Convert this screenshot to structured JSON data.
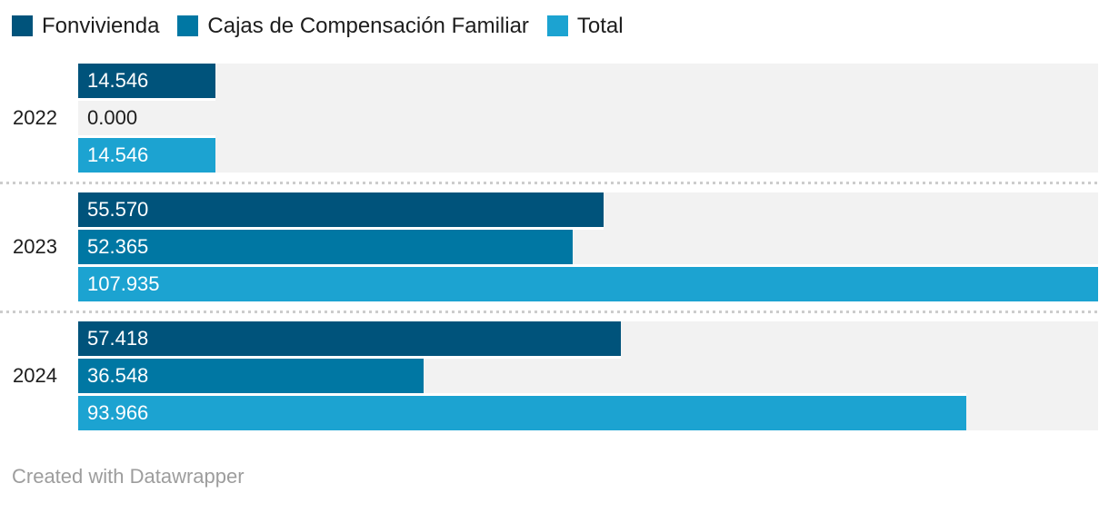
{
  "chart_data": {
    "type": "bar",
    "orientation": "horizontal",
    "title": "",
    "categories": [
      "2022",
      "2023",
      "2024"
    ],
    "series": [
      {
        "name": "Fonvivienda",
        "color": "#00537b",
        "values": [
          14546,
          55570,
          57418
        ],
        "display_labels": [
          "14.546",
          "55.570",
          "57.418"
        ]
      },
      {
        "name": "Cajas de Compensación Familiar",
        "color": "#0077a3",
        "values": [
          0,
          52365,
          36548
        ],
        "display_labels": [
          "0.000",
          "52.365",
          "36.548"
        ]
      },
      {
        "name": "Total",
        "color": "#1ca3d1",
        "values": [
          14546,
          107935,
          93966
        ],
        "display_labels": [
          "14.546",
          "107.935",
          "93.966"
        ]
      }
    ],
    "max_value": 107935,
    "legend_position": "top",
    "grid": false,
    "value_labels_inside_bars": true
  },
  "colors": {
    "track_background": "#f2f2f2",
    "separator": "#cccccc",
    "label_on_bar": "#ffffff",
    "label_zero": "#1d1d1d",
    "category_label": "#1d1d1d",
    "footer_text": "#9d9d9d"
  },
  "footer": {
    "attribution": "Created with Datawrapper"
  }
}
